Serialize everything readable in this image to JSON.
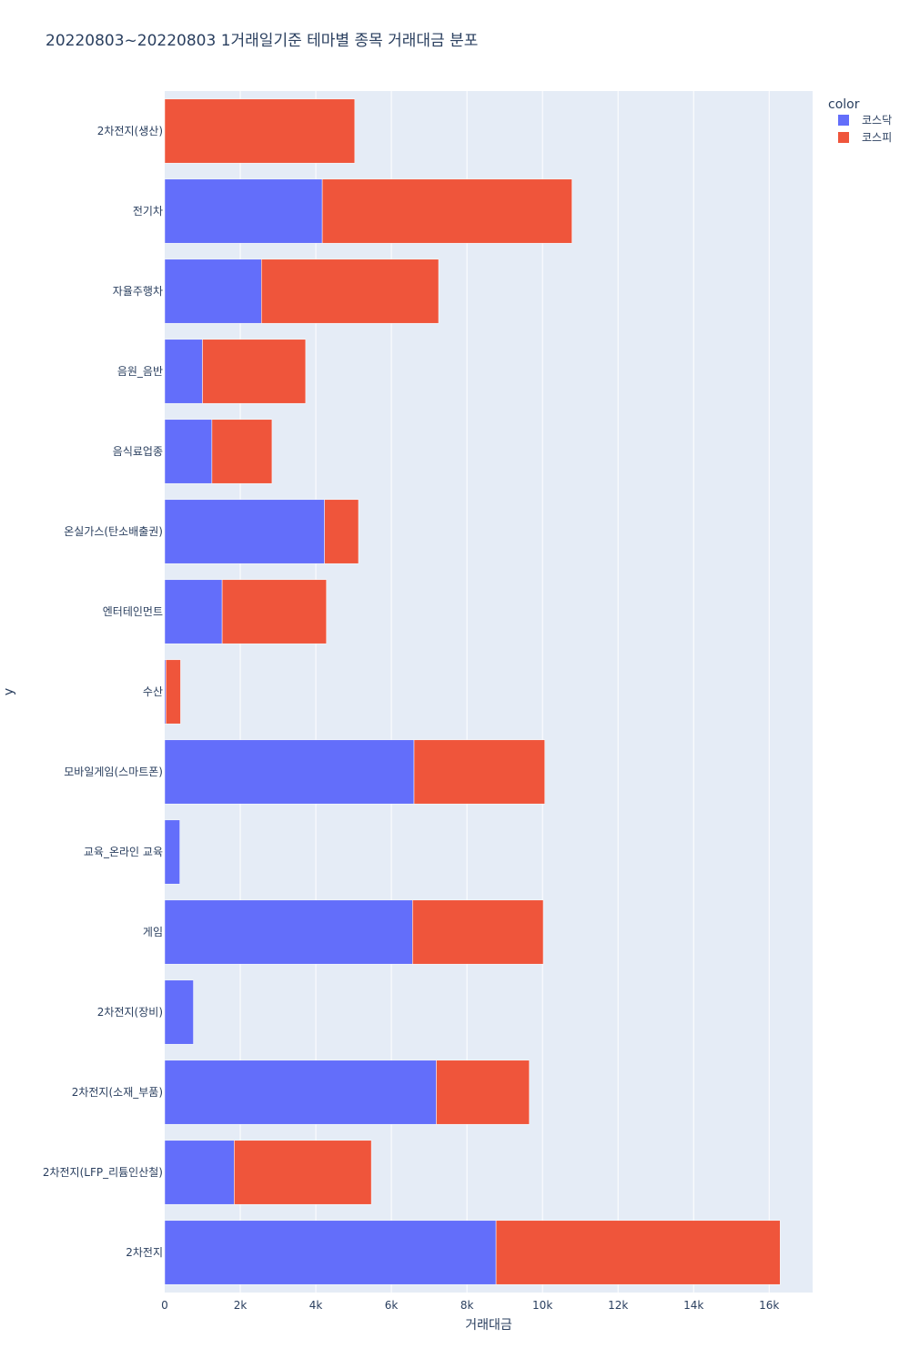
{
  "chart_data": {
    "type": "bar",
    "orientation": "horizontal",
    "barmode": "stack",
    "title": "20220803~20220803 1거래일기준 테마별 종목 거래대금 분포",
    "xlabel": "거래대금",
    "ylabel": "y",
    "xlim": [
      0,
      17150
    ],
    "x_ticks": [
      0,
      2000,
      4000,
      6000,
      8000,
      10000,
      12000,
      14000,
      16000
    ],
    "x_tick_labels": [
      "0",
      "2k",
      "4k",
      "6k",
      "8k",
      "10k",
      "12k",
      "14k",
      "16k"
    ],
    "grid": true,
    "categories": [
      "2차전지(생산)",
      "전기차",
      "자율주행차",
      "음원_음반",
      "음식료업종",
      "온실가스(탄소배출권)",
      "엔터테인먼트",
      "수산",
      "모바일게임(스마트폰)",
      "교육_온라인 교육",
      "게임",
      "2차전지(장비)",
      "2차전지(소재_부품)",
      "2차전지(LFP_리튬인산철)",
      "2차전지"
    ],
    "series": [
      {
        "name": "코스닥",
        "color": "#636efa",
        "values": [
          0,
          4170,
          2560,
          1000,
          1250,
          4230,
          1520,
          30,
          6600,
          400,
          6560,
          760,
          7190,
          1840,
          8770
        ]
      },
      {
        "name": "코스피",
        "color": "#ef553b",
        "values": [
          5030,
          6610,
          4690,
          2730,
          1590,
          900,
          2760,
          390,
          3460,
          0,
          3460,
          0,
          2460,
          3630,
          7520
        ]
      }
    ],
    "legend": {
      "title": "color",
      "position": "top-right"
    }
  }
}
